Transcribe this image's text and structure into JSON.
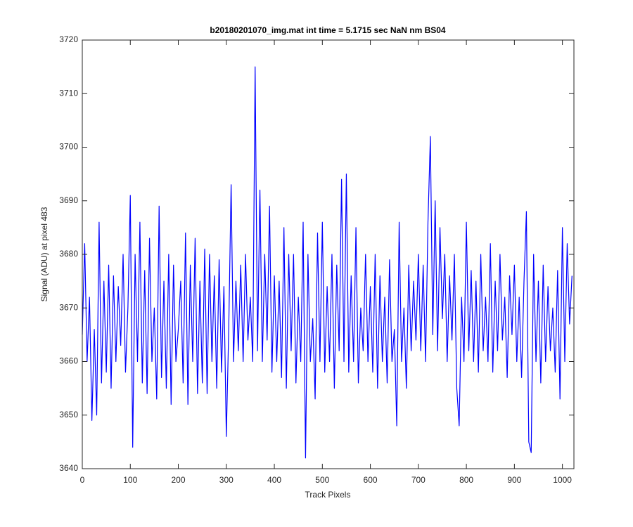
{
  "chart_data": {
    "type": "line",
    "title": "b20180201070_img.mat int time = 5.1715 sec  NaN nm BS04",
    "x_label": "Track Pixels",
    "y_label": "Signal (ADU) at pixel 483",
    "xlim": [
      0,
      1024
    ],
    "ylim": [
      3640,
      3720
    ],
    "xticks": [
      0,
      100,
      200,
      300,
      400,
      500,
      600,
      700,
      800,
      900,
      1000
    ],
    "yticks": [
      3640,
      3650,
      3660,
      3670,
      3680,
      3690,
      3700,
      3710,
      3720
    ],
    "color": "#0000ff",
    "x": [
      0,
      5,
      10,
      15,
      20,
      25,
      30,
      35,
      40,
      45,
      50,
      55,
      60,
      65,
      70,
      75,
      80,
      85,
      90,
      95,
      100,
      105,
      110,
      115,
      120,
      125,
      130,
      135,
      140,
      145,
      150,
      155,
      160,
      165,
      170,
      175,
      180,
      185,
      190,
      195,
      200,
      205,
      210,
      215,
      220,
      225,
      230,
      235,
      240,
      245,
      250,
      255,
      260,
      265,
      270,
      275,
      280,
      285,
      290,
      295,
      300,
      305,
      310,
      315,
      320,
      325,
      330,
      335,
      340,
      345,
      350,
      355,
      360,
      365,
      370,
      375,
      380,
      385,
      390,
      395,
      400,
      405,
      410,
      415,
      420,
      425,
      430,
      435,
      440,
      445,
      450,
      455,
      460,
      465,
      470,
      475,
      480,
      485,
      490,
      495,
      500,
      505,
      510,
      515,
      520,
      525,
      530,
      535,
      540,
      545,
      550,
      555,
      560,
      565,
      570,
      575,
      580,
      585,
      590,
      595,
      600,
      605,
      610,
      615,
      620,
      625,
      630,
      635,
      640,
      645,
      650,
      655,
      660,
      665,
      670,
      675,
      680,
      685,
      690,
      695,
      700,
      705,
      710,
      715,
      720,
      725,
      730,
      735,
      740,
      745,
      750,
      755,
      760,
      765,
      770,
      775,
      780,
      785,
      790,
      795,
      800,
      805,
      810,
      815,
      820,
      825,
      830,
      835,
      840,
      845,
      850,
      855,
      860,
      865,
      870,
      875,
      880,
      885,
      890,
      895,
      900,
      905,
      910,
      915,
      920,
      925,
      930,
      935,
      940,
      945,
      950,
      955,
      960,
      965,
      970,
      975,
      980,
      985,
      990,
      995,
      1000,
      1005,
      1010,
      1015,
      1020
    ],
    "values": [
      3665,
      3682,
      3660,
      3672,
      3649,
      3666,
      3650,
      3686,
      3656,
      3675,
      3658,
      3678,
      3655,
      3676,
      3660,
      3674,
      3663,
      3680,
      3658,
      3670,
      3691,
      3644,
      3680,
      3660,
      3686,
      3656,
      3677,
      3654,
      3683,
      3660,
      3670,
      3653,
      3689,
      3657,
      3675,
      3655,
      3680,
      3652,
      3678,
      3660,
      3666,
      3675,
      3656,
      3684,
      3652,
      3678,
      3660,
      3683,
      3654,
      3675,
      3656,
      3681,
      3654,
      3680,
      3660,
      3676,
      3655,
      3679,
      3658,
      3674,
      3646,
      3666,
      3693,
      3660,
      3675,
      3662,
      3678,
      3660,
      3680,
      3664,
      3672,
      3660,
      3715,
      3662,
      3692,
      3660,
      3680,
      3664,
      3689,
      3658,
      3676,
      3660,
      3675,
      3657,
      3685,
      3655,
      3680,
      3662,
      3680,
      3656,
      3672,
      3660,
      3686,
      3642,
      3680,
      3660,
      3668,
      3653,
      3684,
      3660,
      3686,
      3658,
      3674,
      3660,
      3680,
      3655,
      3678,
      3662,
      3694,
      3660,
      3695,
      3658,
      3676,
      3660,
      3685,
      3656,
      3670,
      3662,
      3680,
      3660,
      3674,
      3658,
      3680,
      3655,
      3676,
      3660,
      3672,
      3656,
      3679,
      3660,
      3666,
      3648,
      3686,
      3660,
      3670,
      3655,
      3678,
      3662,
      3675,
      3664,
      3680,
      3662,
      3678,
      3660,
      3686,
      3702,
      3665,
      3690,
      3662,
      3685,
      3668,
      3680,
      3660,
      3676,
      3664,
      3680,
      3655,
      3648,
      3672,
      3660,
      3686,
      3662,
      3677,
      3660,
      3675,
      3658,
      3680,
      3662,
      3672,
      3660,
      3682,
      3658,
      3675,
      3662,
      3680,
      3664,
      3672,
      3657,
      3676,
      3665,
      3678,
      3660,
      3672,
      3657,
      3675,
      3688,
      3645,
      3643,
      3680,
      3660,
      3675,
      3656,
      3678,
      3660,
      3674,
      3662,
      3670,
      3658,
      3677,
      3653,
      3685,
      3660,
      3682,
      3667,
      3676
    ]
  }
}
